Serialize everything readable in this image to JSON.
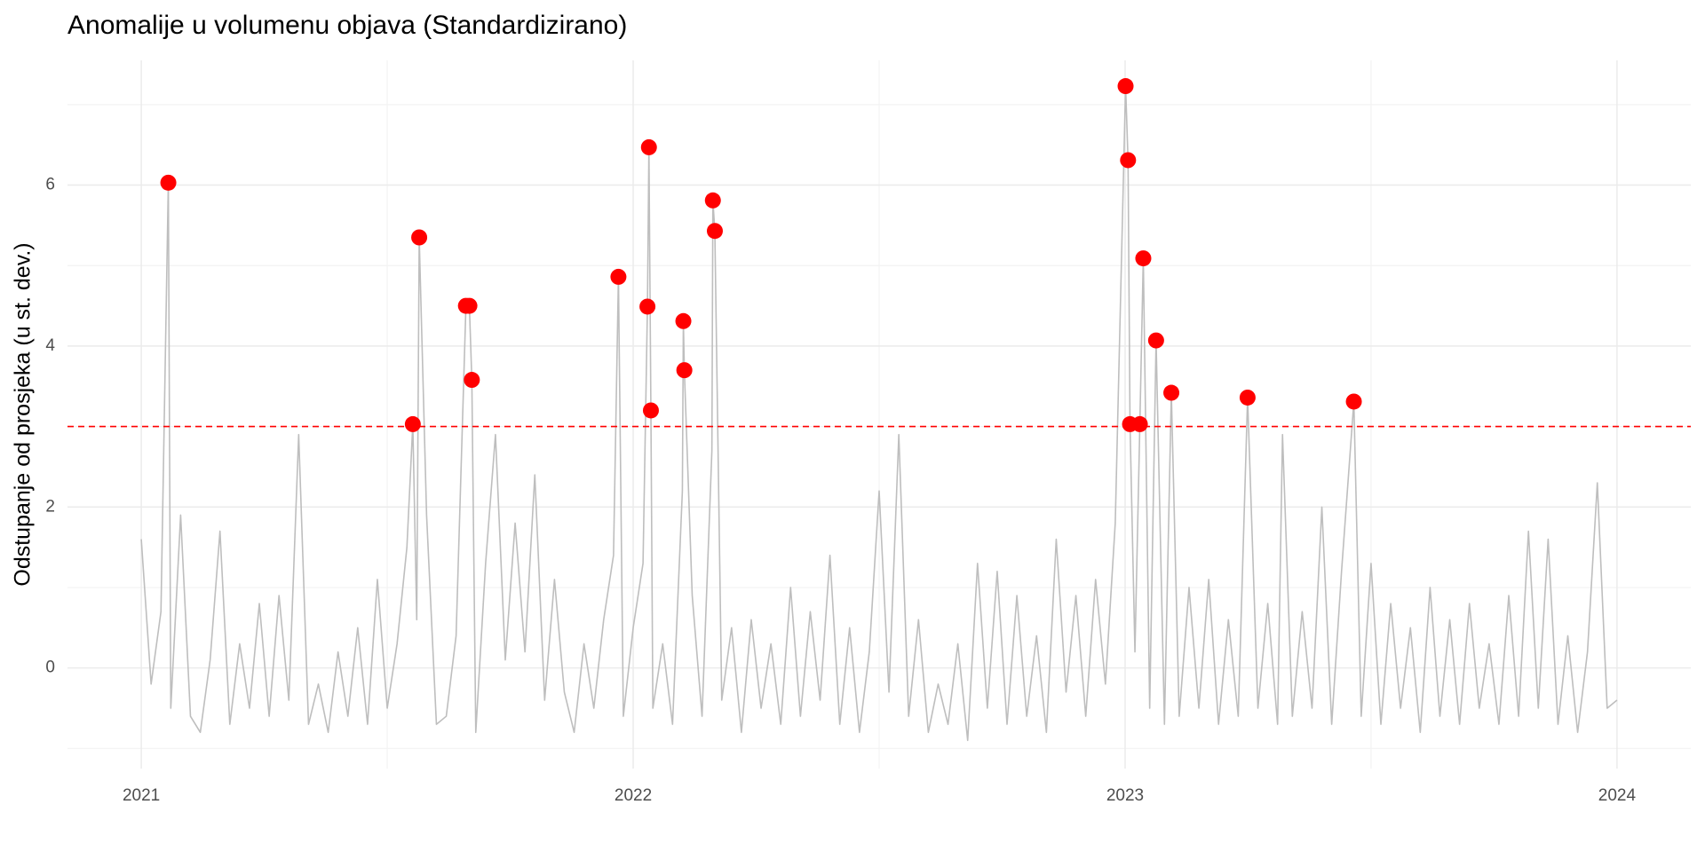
{
  "chart_data": {
    "type": "line",
    "title": "Anomalije u volumenu objava (Standardizirano)",
    "ylabel": "Odstupanje od prosjeka (u st. dev.)",
    "xlim": [
      2020.85,
      2024.15
    ],
    "xticks": [
      2021,
      2022,
      2023,
      2024
    ],
    "ylim": [
      -1.25,
      7.55
    ],
    "yticks": [
      0,
      2,
      4,
      6
    ],
    "grid": true,
    "threshold": {
      "value": 3,
      "color": "#ff0000",
      "linestyle": "dashed"
    },
    "series": [
      {
        "type": "line",
        "color": "#bebebe",
        "x": [
          2021.0,
          2021.02,
          2021.04,
          2021.055,
          2021.06,
          2021.08,
          2021.1,
          2021.12,
          2021.14,
          2021.16,
          2021.18,
          2021.2,
          2021.22,
          2021.24,
          2021.26,
          2021.28,
          2021.3,
          2021.32,
          2021.34,
          2021.36,
          2021.38,
          2021.4,
          2021.42,
          2021.44,
          2021.46,
          2021.48,
          2021.5,
          2021.52,
          2021.54,
          2021.552,
          2021.56,
          2021.565,
          2021.58,
          2021.6,
          2021.62,
          2021.64,
          2021.66,
          2021.667,
          2021.672,
          2021.68,
          2021.7,
          2021.72,
          2021.74,
          2021.76,
          2021.78,
          2021.8,
          2021.82,
          2021.84,
          2021.86,
          2021.88,
          2021.9,
          2021.92,
          2021.94,
          2021.96,
          2021.97,
          2021.98,
          2022.0,
          2022.02,
          2022.029,
          2022.032,
          2022.036,
          2022.04,
          2022.06,
          2022.08,
          2022.1,
          2022.102,
          2022.104,
          2022.12,
          2022.14,
          2022.16,
          2022.162,
          2022.166,
          2022.18,
          2022.2,
          2022.22,
          2022.24,
          2022.26,
          2022.28,
          2022.3,
          2022.32,
          2022.34,
          2022.36,
          2022.38,
          2022.4,
          2022.42,
          2022.44,
          2022.46,
          2022.48,
          2022.5,
          2022.52,
          2022.54,
          2022.56,
          2022.58,
          2022.6,
          2022.62,
          2022.64,
          2022.66,
          2022.68,
          2022.7,
          2022.72,
          2022.74,
          2022.76,
          2022.78,
          2022.8,
          2022.82,
          2022.84,
          2022.86,
          2022.88,
          2022.9,
          2022.92,
          2022.94,
          2022.96,
          2022.98,
          2023.001,
          2023.006,
          2023.01,
          2023.02,
          2023.03,
          2023.037,
          2023.05,
          2023.063,
          2023.08,
          2023.094,
          2023.11,
          2023.13,
          2023.15,
          2023.17,
          2023.19,
          2023.21,
          2023.23,
          2023.249,
          2023.27,
          2023.29,
          2023.31,
          2023.32,
          2023.34,
          2023.36,
          2023.38,
          2023.4,
          2023.42,
          2023.44,
          2023.465,
          2023.48,
          2023.5,
          2023.52,
          2023.54,
          2023.56,
          2023.58,
          2023.6,
          2023.62,
          2023.64,
          2023.66,
          2023.68,
          2023.7,
          2023.72,
          2023.74,
          2023.76,
          2023.78,
          2023.8,
          2023.82,
          2023.84,
          2023.86,
          2023.88,
          2023.9,
          2023.92,
          2023.94,
          2023.96,
          2023.98,
          2024.0
        ],
        "values": [
          1.6,
          -0.2,
          0.7,
          6.03,
          -0.5,
          1.9,
          -0.6,
          -0.8,
          0.1,
          1.7,
          -0.7,
          0.3,
          -0.5,
          0.8,
          -0.6,
          0.9,
          -0.4,
          2.9,
          -0.7,
          -0.2,
          -0.8,
          0.2,
          -0.6,
          0.5,
          -0.7,
          1.1,
          -0.5,
          0.3,
          1.5,
          3.03,
          0.6,
          5.35,
          1.9,
          -0.7,
          -0.6,
          0.4,
          4.5,
          4.5,
          3.58,
          -0.8,
          1.3,
          2.9,
          0.1,
          1.8,
          0.2,
          2.4,
          -0.4,
          1.1,
          -0.3,
          -0.8,
          0.3,
          -0.5,
          0.6,
          1.4,
          4.86,
          -0.6,
          0.5,
          1.3,
          4.49,
          6.47,
          3.2,
          -0.5,
          0.3,
          -0.7,
          2.2,
          4.31,
          3.7,
          0.9,
          -0.6,
          2.7,
          5.81,
          5.43,
          -0.4,
          0.5,
          -0.8,
          0.6,
          -0.5,
          0.3,
          -0.7,
          1.0,
          -0.6,
          0.7,
          -0.4,
          1.4,
          -0.7,
          0.5,
          -0.8,
          0.2,
          2.2,
          -0.3,
          2.9,
          -0.6,
          0.6,
          -0.8,
          -0.2,
          -0.7,
          0.3,
          -0.9,
          1.3,
          -0.5,
          1.2,
          -0.7,
          0.9,
          -0.6,
          0.4,
          -0.8,
          1.6,
          -0.3,
          0.9,
          -0.6,
          1.1,
          -0.2,
          1.8,
          7.23,
          6.31,
          3.03,
          0.2,
          3.03,
          5.09,
          -0.5,
          4.07,
          -0.7,
          3.42,
          -0.6,
          1.0,
          -0.5,
          1.1,
          -0.7,
          0.6,
          -0.6,
          3.36,
          -0.5,
          0.8,
          -0.7,
          2.9,
          -0.6,
          0.7,
          -0.5,
          2.0,
          -0.7,
          1.2,
          3.31,
          -0.6,
          1.3,
          -0.7,
          0.8,
          -0.5,
          0.5,
          -0.8,
          1.0,
          -0.6,
          0.6,
          -0.7,
          0.8,
          -0.5,
          0.3,
          -0.7,
          0.9,
          -0.6,
          1.7,
          -0.5,
          1.6,
          -0.7,
          0.4,
          -0.8,
          0.2,
          2.3,
          -0.5,
          -0.4
        ]
      },
      {
        "type": "scatter",
        "color": "#ff0000",
        "x": [
          2021.055,
          2021.552,
          2021.565,
          2021.66,
          2021.667,
          2021.672,
          2021.97,
          2022.029,
          2022.032,
          2022.036,
          2022.102,
          2022.104,
          2022.162,
          2022.166,
          2023.001,
          2023.006,
          2023.01,
          2023.03,
          2023.037,
          2023.063,
          2023.094,
          2023.249,
          2023.465
        ],
        "values": [
          6.03,
          3.03,
          5.35,
          4.5,
          4.5,
          3.58,
          4.86,
          4.49,
          6.47,
          3.2,
          4.31,
          3.7,
          5.81,
          5.43,
          7.23,
          6.31,
          3.03,
          3.03,
          5.09,
          4.07,
          3.42,
          3.36,
          3.31
        ]
      }
    ]
  }
}
